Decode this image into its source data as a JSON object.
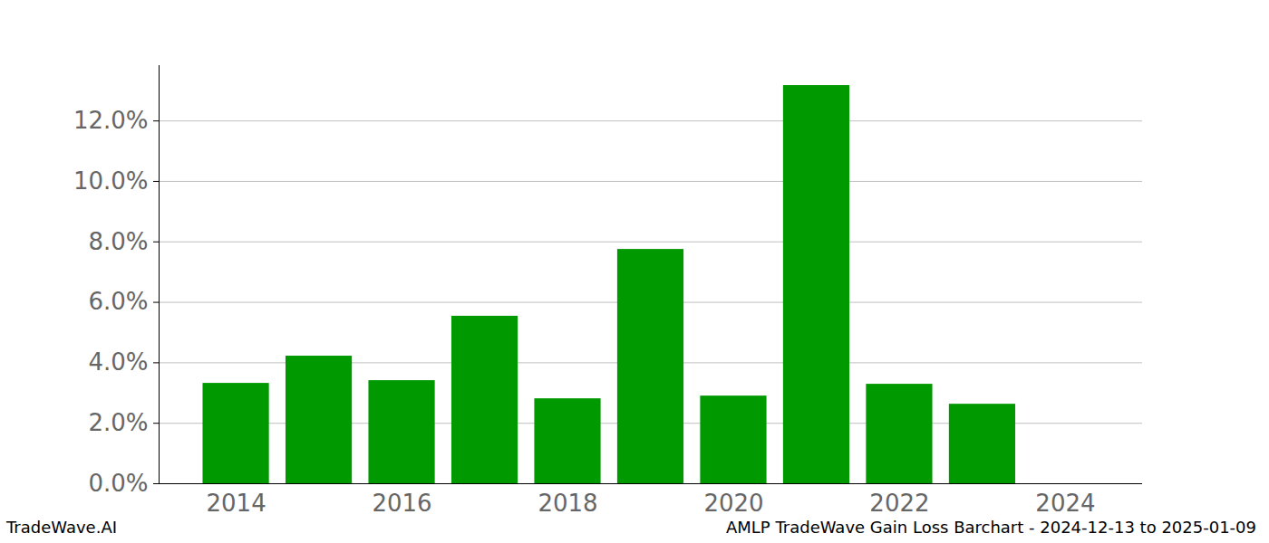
{
  "chart_data": {
    "type": "bar",
    "title": "AMLP TradeWave Gain Loss Barchart - 2024-12-13 to 2025-01-09",
    "annotations": [
      "TradeWave.AI"
    ],
    "x": [
      2014,
      2015,
      2016,
      2017,
      2018,
      2019,
      2020,
      2021,
      2022,
      2023,
      2024
    ],
    "values": [
      3.32,
      4.22,
      3.41,
      5.54,
      2.81,
      7.75,
      2.9,
      13.17,
      3.29,
      2.63,
      0
    ],
    "color": "#009900",
    "xlim": [
      2013.07,
      2024.93
    ],
    "xticks": [
      2014,
      2016,
      2018,
      2020,
      2022,
      2024
    ],
    "ylim": [
      0,
      13.83
    ],
    "yticks": [
      {
        "value": 0,
        "label": "0.0%"
      },
      {
        "value": 2,
        "label": "2.0%"
      },
      {
        "value": 4,
        "label": "4.0%"
      },
      {
        "value": 6,
        "label": "6.0%"
      },
      {
        "value": 8,
        "label": "8.0%"
      },
      {
        "value": 10,
        "label": "10.0%"
      },
      {
        "value": 12,
        "label": "12.0%"
      }
    ],
    "grid": true
  }
}
